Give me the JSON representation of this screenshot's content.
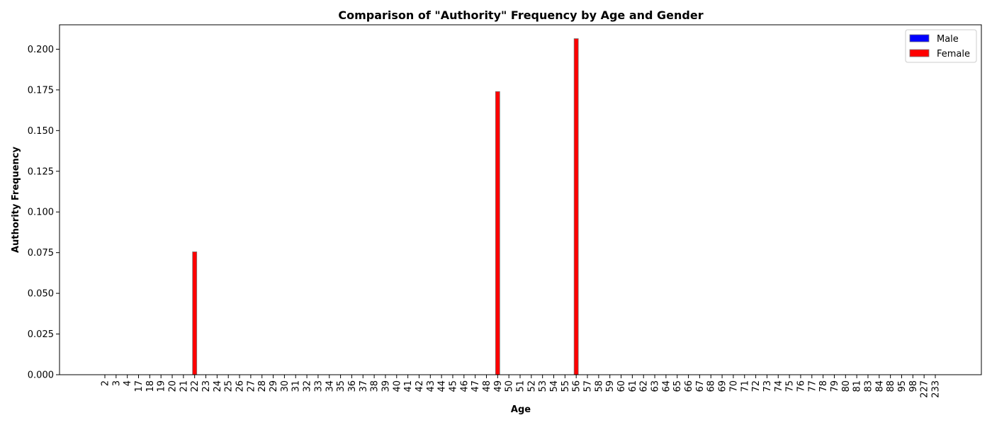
{
  "chart_data": {
    "type": "bar",
    "title": "Comparison of \"Authority\" Frequency by Age and Gender",
    "xlabel": "Age",
    "ylabel": "Authority Frequency",
    "ylim": [
      0,
      0.215
    ],
    "yticks": [
      "0.000",
      "0.025",
      "0.050",
      "0.075",
      "0.100",
      "0.125",
      "0.150",
      "0.175",
      "0.200"
    ],
    "grid": false,
    "legend_position": "top-right",
    "categories": [
      "2",
      "3",
      "4",
      "17",
      "18",
      "19",
      "20",
      "21",
      "22",
      "23",
      "24",
      "25",
      "26",
      "27",
      "28",
      "29",
      "30",
      "31",
      "32",
      "33",
      "34",
      "35",
      "36",
      "37",
      "38",
      "39",
      "40",
      "41",
      "42",
      "43",
      "44",
      "45",
      "46",
      "47",
      "48",
      "49",
      "50",
      "51",
      "52",
      "53",
      "54",
      "55",
      "56",
      "57",
      "58",
      "59",
      "60",
      "61",
      "62",
      "63",
      "64",
      "65",
      "66",
      "67",
      "68",
      "69",
      "70",
      "71",
      "72",
      "73",
      "74",
      "75",
      "76",
      "77",
      "78",
      "79",
      "80",
      "81",
      "83",
      "84",
      "88",
      "95",
      "98",
      "227",
      "233"
    ],
    "series": [
      {
        "name": "Male",
        "color": "#0000ff",
        "values": [
          0,
          0,
          0,
          0,
          0,
          0,
          0,
          0,
          0,
          0,
          0,
          0,
          0,
          0,
          0,
          0,
          0,
          0,
          0,
          0,
          0,
          0,
          0,
          0,
          0,
          0,
          0,
          0,
          0,
          0,
          0,
          0,
          0,
          0,
          0,
          0,
          0,
          0,
          0,
          0,
          0,
          0,
          0,
          0,
          0,
          0,
          0,
          0,
          0,
          0,
          0,
          0,
          0,
          0,
          0,
          0,
          0,
          0,
          0,
          0,
          0,
          0,
          0,
          0,
          0,
          0,
          0,
          0,
          0,
          0,
          0,
          0,
          0,
          0,
          0
        ]
      },
      {
        "name": "Female",
        "color": "#ff0000",
        "values": [
          0,
          0,
          0,
          0,
          0,
          0,
          0,
          0,
          0.0755,
          0,
          0,
          0,
          0,
          0,
          0,
          0,
          0,
          0,
          0,
          0,
          0,
          0,
          0,
          0,
          0,
          0,
          0,
          0,
          0,
          0,
          0,
          0,
          0,
          0,
          0,
          0.174,
          0,
          0,
          0,
          0,
          0,
          0,
          0.2065,
          0,
          0,
          0,
          0,
          0,
          0,
          0,
          0,
          0,
          0,
          0,
          0,
          0,
          0,
          0,
          0,
          0,
          0,
          0,
          0,
          0,
          0,
          0,
          0,
          0,
          0,
          0,
          0,
          0,
          0,
          0,
          0
        ]
      }
    ]
  }
}
